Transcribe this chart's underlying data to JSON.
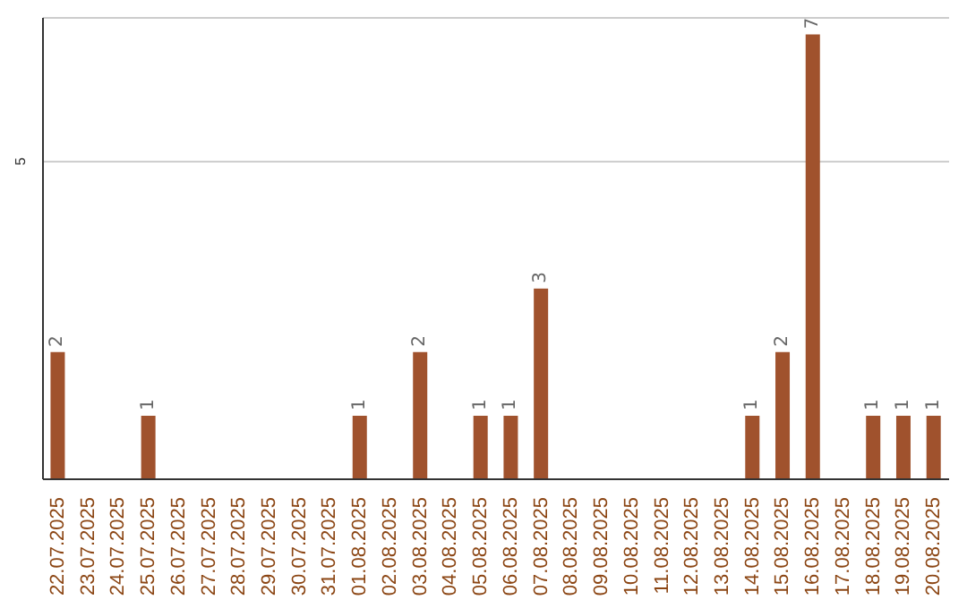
{
  "chart_data": {
    "type": "bar",
    "categories": [
      "22.07.2025",
      "23.07.2025",
      "24.07.2025",
      "25.07.2025",
      "26.07.2025",
      "27.07.2025",
      "28.07.2025",
      "29.07.2025",
      "30.07.2025",
      "31.07.2025",
      "01.08.2025",
      "02.08.2025",
      "03.08.2025",
      "04.08.2025",
      "05.08.2025",
      "06.08.2025",
      "07.08.2025",
      "08.08.2025",
      "09.08.2025",
      "10.08.2025",
      "11.08.2025",
      "12.08.2025",
      "13.08.2025",
      "14.08.2025",
      "15.08.2025",
      "16.08.2025",
      "17.08.2025",
      "18.08.2025",
      "19.08.2025",
      "20.08.2025"
    ],
    "values": [
      2,
      0,
      0,
      1,
      0,
      0,
      0,
      0,
      0,
      0,
      1,
      0,
      2,
      0,
      1,
      1,
      3,
      0,
      0,
      0,
      0,
      0,
      0,
      1,
      2,
      7,
      0,
      1,
      1,
      1
    ],
    "value_labels": [
      "2",
      null,
      null,
      "1",
      null,
      null,
      null,
      null,
      null,
      null,
      "1",
      null,
      "2",
      null,
      "1",
      "1",
      "3",
      null,
      null,
      null,
      null,
      null,
      null,
      "1",
      "2",
      "7",
      null,
      "1",
      "1",
      "1"
    ],
    "color": "#a0522d",
    "ylim": [
      0,
      7.26
    ],
    "yticks": [
      5
    ],
    "grid": "y"
  }
}
